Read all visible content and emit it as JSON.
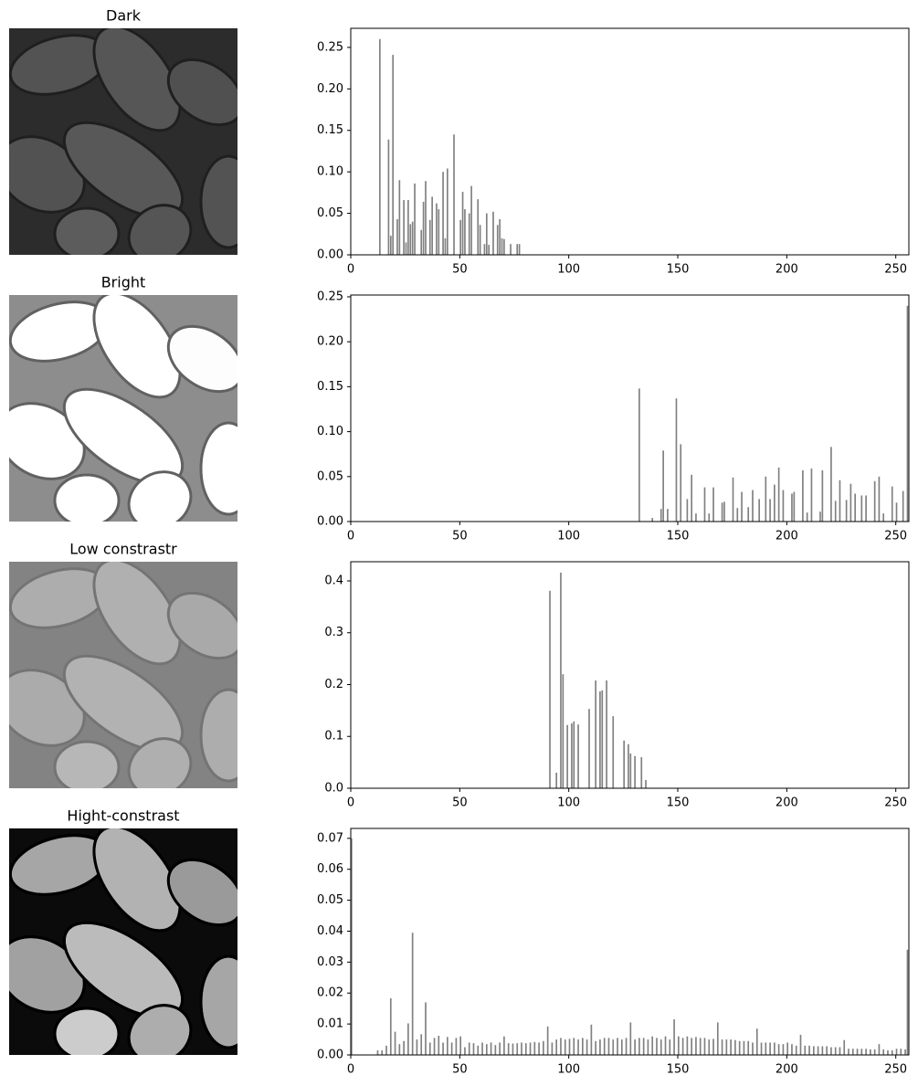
{
  "chart_data": [
    {
      "type": "bar",
      "title": "Dark",
      "color": "#808080",
      "x": [
        13,
        17,
        18,
        19,
        21,
        22,
        24,
        25,
        26,
        27,
        28,
        29,
        32,
        33,
        34,
        36,
        37,
        39,
        40,
        42,
        43,
        44,
        47,
        50,
        51,
        52,
        54,
        55,
        58,
        59,
        61,
        62,
        63,
        65,
        67,
        68,
        69,
        70,
        73,
        76,
        77
      ],
      "values": [
        0.26,
        0.139,
        0.023,
        0.241,
        0.043,
        0.09,
        0.066,
        0.015,
        0.066,
        0.037,
        0.04,
        0.086,
        0.03,
        0.064,
        0.089,
        0.042,
        0.07,
        0.062,
        0.055,
        0.1,
        0.02,
        0.104,
        0.145,
        0.042,
        0.076,
        0.055,
        0.05,
        0.083,
        0.067,
        0.036,
        0.013,
        0.05,
        0.012,
        0.052,
        0.036,
        0.043,
        0.02,
        0.019,
        0.013,
        0.013,
        0.013
      ],
      "xlim": [
        0,
        256
      ],
      "xticks": [
        0,
        50,
        100,
        150,
        200,
        250
      ],
      "ylim": [
        0,
        0.273
      ],
      "yticks": [
        {
          "value": 0,
          "label": "0.00"
        },
        {
          "value": 0.05,
          "label": "0.05"
        },
        {
          "value": 0.1,
          "label": "0.10"
        },
        {
          "value": 0.15,
          "label": "0.15"
        },
        {
          "value": 0.2,
          "label": "0.20"
        },
        {
          "value": 0.25,
          "label": "0.25"
        }
      ]
    },
    {
      "type": "bar",
      "title": "Bright",
      "color": "#808080",
      "x": [
        132,
        138,
        142,
        143,
        145,
        149,
        151,
        154,
        156,
        158,
        162,
        164,
        166,
        170,
        171,
        175,
        177,
        179,
        182,
        184,
        187,
        190,
        192,
        194,
        196,
        198,
        202,
        203,
        207,
        209,
        211,
        215,
        216,
        220,
        222,
        224,
        227,
        229,
        231,
        234,
        236,
        240,
        242,
        244,
        248,
        250,
        253,
        255
      ],
      "values": [
        0.148,
        0.004,
        0.014,
        0.079,
        0.014,
        0.137,
        0.086,
        0.025,
        0.052,
        0.009,
        0.038,
        0.009,
        0.038,
        0.021,
        0.022,
        0.049,
        0.015,
        0.033,
        0.016,
        0.035,
        0.025,
        0.05,
        0.025,
        0.041,
        0.06,
        0.035,
        0.031,
        0.033,
        0.057,
        0.01,
        0.059,
        0.011,
        0.057,
        0.083,
        0.023,
        0.046,
        0.024,
        0.042,
        0.031,
        0.029,
        0.029,
        0.045,
        0.05,
        0.009,
        0.039,
        0.021,
        0.034,
        0.24
      ],
      "xlim": [
        0,
        256
      ],
      "xticks": [
        0,
        50,
        100,
        150,
        200,
        250
      ],
      "ylim": [
        0,
        0.252
      ],
      "yticks": [
        {
          "value": 0,
          "label": "0.00"
        },
        {
          "value": 0.05,
          "label": "0.05"
        },
        {
          "value": 0.1,
          "label": "0.10"
        },
        {
          "value": 0.15,
          "label": "0.15"
        },
        {
          "value": 0.2,
          "label": "0.20"
        },
        {
          "value": 0.25,
          "label": "0.25"
        }
      ]
    },
    {
      "type": "bar",
      "title": "Low constrastr",
      "color": "#808080",
      "x": [
        91,
        94,
        96,
        97,
        99,
        101,
        102,
        104,
        109,
        112,
        114,
        115,
        117,
        120,
        125,
        127,
        128,
        130,
        133,
        135
      ],
      "values": [
        0.381,
        0.03,
        0.416,
        0.22,
        0.122,
        0.125,
        0.129,
        0.123,
        0.153,
        0.208,
        0.187,
        0.189,
        0.208,
        0.139,
        0.092,
        0.085,
        0.067,
        0.062,
        0.06,
        0.016
      ],
      "xlim": [
        0,
        256
      ],
      "xticks": [
        0,
        50,
        100,
        150,
        200,
        250
      ],
      "ylim": [
        0,
        0.437
      ],
      "yticks": [
        {
          "value": 0,
          "label": "0.0"
        },
        {
          "value": 0.1,
          "label": "0.1"
        },
        {
          "value": 0.2,
          "label": "0.2"
        },
        {
          "value": 0.3,
          "label": "0.3"
        },
        {
          "value": 0.4,
          "label": "0.4"
        }
      ]
    },
    {
      "type": "bar",
      "title": "Hight-constrast",
      "color": "#808080",
      "x": [
        0,
        12,
        14,
        16,
        18,
        20,
        22,
        24,
        26,
        28,
        30,
        32,
        34,
        36,
        38,
        40,
        42,
        44,
        46,
        48,
        50,
        52,
        54,
        56,
        58,
        60,
        62,
        64,
        66,
        68,
        70,
        72,
        74,
        76,
        78,
        80,
        82,
        84,
        86,
        88,
        90,
        92,
        94,
        96,
        98,
        100,
        102,
        104,
        106,
        108,
        110,
        112,
        114,
        116,
        118,
        120,
        122,
        124,
        126,
        128,
        130,
        132,
        134,
        136,
        138,
        140,
        142,
        144,
        146,
        148,
        150,
        152,
        154,
        156,
        158,
        160,
        162,
        164,
        166,
        168,
        170,
        172,
        174,
        176,
        178,
        180,
        182,
        184,
        186,
        188,
        190,
        192,
        194,
        196,
        198,
        200,
        202,
        204,
        206,
        208,
        210,
        212,
        214,
        216,
        218,
        220,
        222,
        224,
        226,
        228,
        230,
        232,
        234,
        236,
        238,
        240,
        242,
        244,
        246,
        248,
        250,
        252,
        254,
        255
      ],
      "values": [
        0.07,
        0.0015,
        0.0015,
        0.003,
        0.0183,
        0.0075,
        0.0035,
        0.0045,
        0.0102,
        0.0395,
        0.005,
        0.0067,
        0.017,
        0.004,
        0.0055,
        0.0062,
        0.004,
        0.0058,
        0.004,
        0.0055,
        0.006,
        0.0025,
        0.004,
        0.0038,
        0.003,
        0.004,
        0.0035,
        0.004,
        0.0032,
        0.004,
        0.006,
        0.0038,
        0.0037,
        0.0038,
        0.004,
        0.0038,
        0.004,
        0.0042,
        0.004,
        0.0045,
        0.0092,
        0.004,
        0.005,
        0.0055,
        0.005,
        0.0052,
        0.0055,
        0.005,
        0.0055,
        0.005,
        0.0098,
        0.0045,
        0.005,
        0.0055,
        0.0055,
        0.005,
        0.0055,
        0.005,
        0.0055,
        0.0105,
        0.005,
        0.0055,
        0.0055,
        0.005,
        0.006,
        0.0055,
        0.005,
        0.006,
        0.005,
        0.0115,
        0.006,
        0.0055,
        0.006,
        0.0055,
        0.0058,
        0.0055,
        0.0055,
        0.005,
        0.0052,
        0.0105,
        0.005,
        0.005,
        0.005,
        0.0048,
        0.0045,
        0.0045,
        0.0045,
        0.004,
        0.0085,
        0.004,
        0.004,
        0.004,
        0.004,
        0.0035,
        0.0035,
        0.004,
        0.0035,
        0.003,
        0.0065,
        0.003,
        0.003,
        0.0028,
        0.0028,
        0.0028,
        0.0028,
        0.0025,
        0.0025,
        0.0025,
        0.0048,
        0.002,
        0.002,
        0.002,
        0.002,
        0.002,
        0.0018,
        0.0018,
        0.0035,
        0.0018,
        0.0015,
        0.0015,
        0.002,
        0.002,
        0.0018,
        0.034
      ],
      "xlim": [
        0,
        256
      ],
      "xticks": [
        0,
        50,
        100,
        150,
        200,
        250
      ],
      "ylim": [
        0,
        0.0732
      ],
      "yticks": [
        {
          "value": 0,
          "label": "0.00"
        },
        {
          "value": 0.01,
          "label": "0.01"
        },
        {
          "value": 0.02,
          "label": "0.02"
        },
        {
          "value": 0.03,
          "label": "0.03"
        },
        {
          "value": 0.04,
          "label": "0.04"
        },
        {
          "value": 0.05,
          "label": "0.05"
        },
        {
          "value": 0.06,
          "label": "0.06"
        },
        {
          "value": 0.07,
          "label": "0.07"
        }
      ]
    }
  ]
}
